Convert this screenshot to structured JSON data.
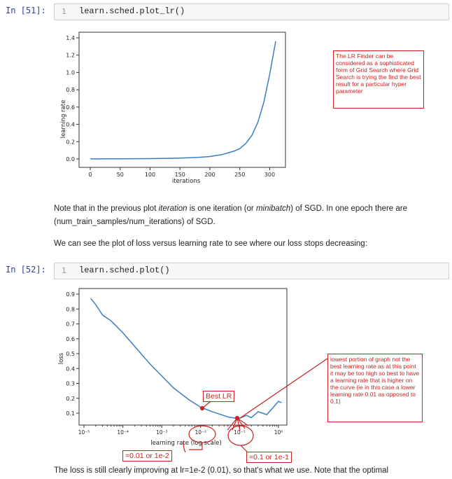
{
  "cells": [
    {
      "prompt": "In [51]:",
      "lineno": "1",
      "code": "learn.sched.plot_lr()"
    },
    {
      "prompt": "In [52]:",
      "lineno": "1",
      "code": "learn.sched.plot()"
    }
  ],
  "markdown": {
    "p1_a": "Note that in the previous plot ",
    "p1_em1": "iteration",
    "p1_b": " is one iteration (or ",
    "p1_em2": "minibatch",
    "p1_c": ") of SGD. In one epoch there are",
    "p1_line2": "(num_train_samples/num_iterations) of SGD.",
    "p2": "We can see the plot of loss versus learning rate to see where our loss stops decreasing:",
    "p3": "The loss is still clearly improving at lr=1e-2 (0.01), so that's what we use. Note that the optimal"
  },
  "annotations": {
    "lr_finder_note": "The LR Finder can be considered as a sophisticated form of Grid Search where Grid Search is trying the find the best result for a particular hyper parameter",
    "lowest_note": "lowest portion of graph not the best learning rate as at this point it may be too high so best to have a learning rate that is higher on the curve (ie in this case a lower learning rate 0.01 as opposed to 0,1)",
    "best_lr": "Best LR",
    "label_001": "=0.01 or 1e-2",
    "label_01": "=0.1 or 1e-1"
  },
  "chart_data": [
    {
      "type": "line",
      "xlabel": "iterations",
      "ylabel": "learning rate",
      "xlim": [
        0,
        310
      ],
      "ylim": [
        0,
        1.4
      ],
      "xticks": [
        "0",
        "50",
        "100",
        "150",
        "200",
        "250",
        "300"
      ],
      "yticks": [
        "0.0",
        "0.2",
        "0.4",
        "0.6",
        "0.8",
        "1.0",
        "1.2",
        "1.4"
      ],
      "x": [
        0,
        50,
        100,
        150,
        180,
        200,
        220,
        240,
        250,
        260,
        270,
        280,
        290,
        300,
        310
      ],
      "y": [
        0.001,
        0.002,
        0.004,
        0.01,
        0.018,
        0.028,
        0.05,
        0.09,
        0.12,
        0.18,
        0.27,
        0.42,
        0.65,
        0.98,
        1.36
      ],
      "color": "#3a7ebf"
    },
    {
      "type": "line",
      "xlabel": "learning rate (log scale)",
      "ylabel": "loss",
      "xscale": "log",
      "xticks": [
        "10⁻⁵",
        "10⁻⁴",
        "10⁻³",
        "10⁻²",
        "10⁻¹",
        "10⁰"
      ],
      "yticks": [
        "0.1",
        "0.2",
        "0.3",
        "0.4",
        "0.5",
        "0.6",
        "0.7",
        "0.8",
        "0.9"
      ],
      "ylim": [
        0.04,
        0.93
      ],
      "x": [
        1.5e-05,
        2e-05,
        3e-05,
        5e-05,
        0.0001,
        0.0002,
        0.0005,
        0.001,
        0.002,
        0.005,
        0.01,
        0.02,
        0.05,
        0.08,
        0.1,
        0.15,
        0.2,
        0.3,
        0.5,
        0.8,
        1.0,
        1.2
      ],
      "y": [
        0.87,
        0.83,
        0.76,
        0.72,
        0.64,
        0.55,
        0.43,
        0.35,
        0.27,
        0.19,
        0.14,
        0.11,
        0.075,
        0.065,
        0.065,
        0.085,
        0.07,
        0.11,
        0.09,
        0.15,
        0.18,
        0.17
      ],
      "color": "#3a7ebf"
    }
  ]
}
